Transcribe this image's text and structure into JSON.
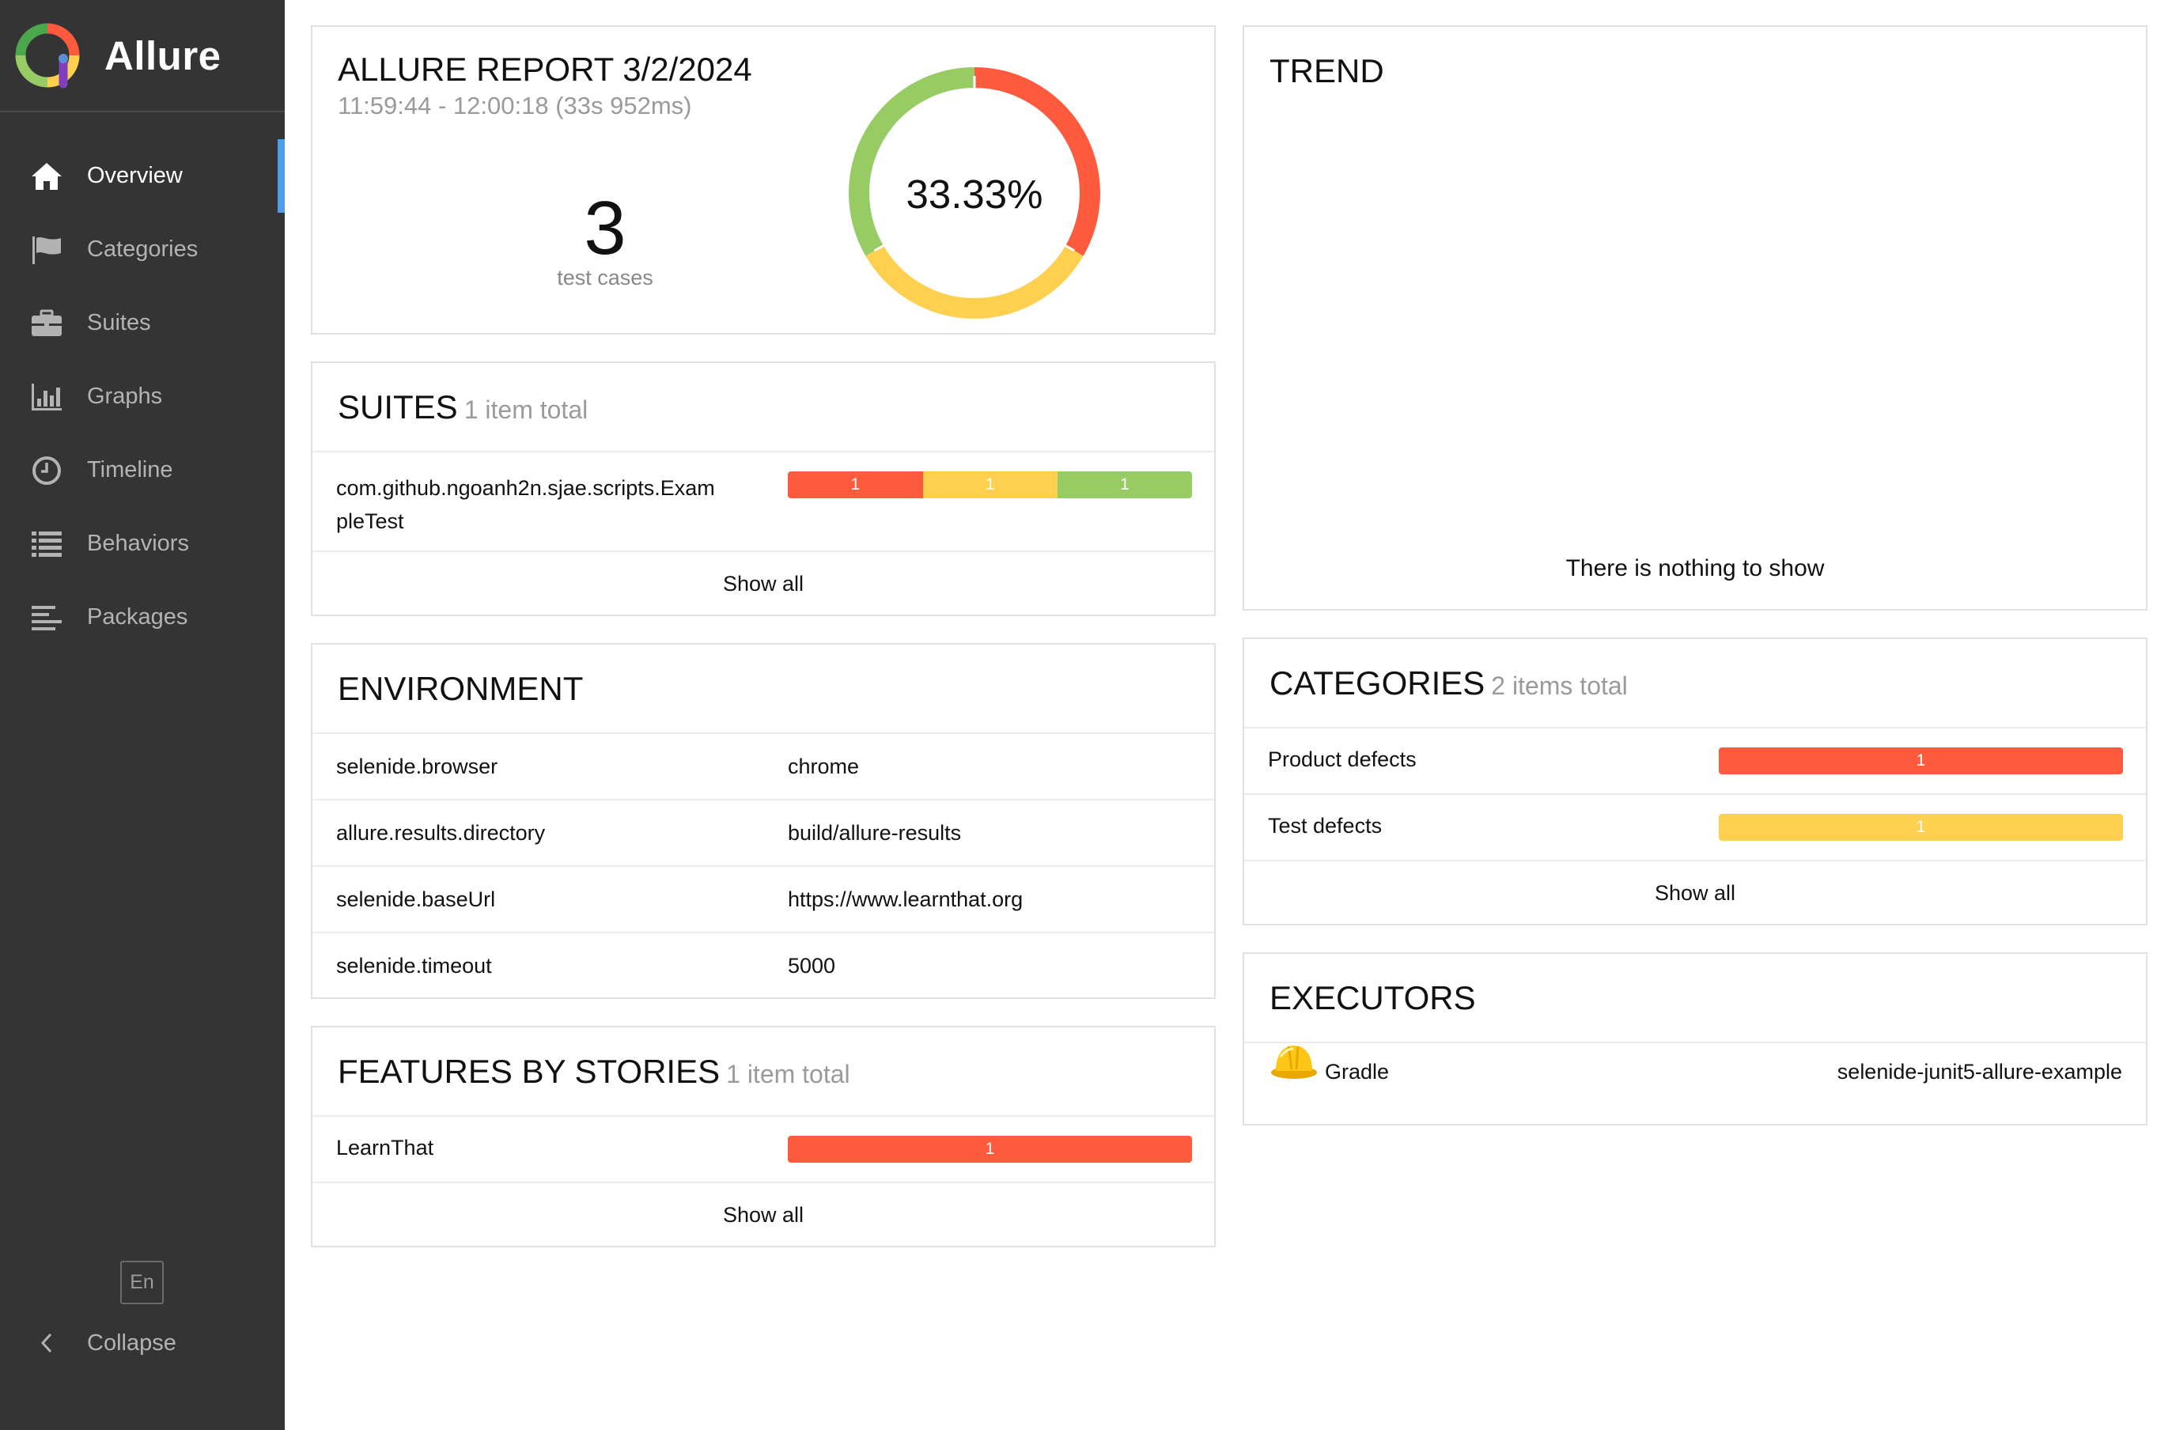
{
  "app": {
    "name": "Allure"
  },
  "sidebar": {
    "items": [
      {
        "label": "Overview",
        "icon": "home-icon",
        "active": true
      },
      {
        "label": "Categories",
        "icon": "flag-icon"
      },
      {
        "label": "Suites",
        "icon": "briefcase-icon"
      },
      {
        "label": "Graphs",
        "icon": "bar-chart-icon"
      },
      {
        "label": "Timeline",
        "icon": "clock-icon"
      },
      {
        "label": "Behaviors",
        "icon": "list-icon"
      },
      {
        "label": "Packages",
        "icon": "align-left-icon"
      }
    ],
    "language": "En",
    "collapse_label": "Collapse"
  },
  "summary": {
    "title": "ALLURE REPORT 3/2/2024",
    "time_range": "11:59:44 - 12:00:18 (33s 952ms)",
    "test_count": "3",
    "test_count_label": "test cases",
    "success_rate": "33.33%",
    "donut": [
      {
        "status": "failed",
        "value": 1,
        "color": "#fd5a3e"
      },
      {
        "status": "broken",
        "value": 1,
        "color": "#ffd050"
      },
      {
        "status": "passed",
        "value": 1,
        "color": "#97cc64"
      }
    ]
  },
  "suites": {
    "title": "SUITES",
    "total": "1 item total",
    "rows": [
      {
        "name_line1": "com.github.ngoanh2n.sjae.scripts.Exam",
        "name_line2": "pleTest",
        "failed": "1",
        "broken": "1",
        "passed": "1"
      }
    ],
    "show_all": "Show all"
  },
  "environment": {
    "title": "ENVIRONMENT",
    "rows": [
      {
        "key": "selenide.browser",
        "value": "chrome"
      },
      {
        "key": "allure.results.directory",
        "value": "build/allure-results"
      },
      {
        "key": "selenide.baseUrl",
        "value": "https://www.learnthat.org"
      },
      {
        "key": "selenide.timeout",
        "value": "5000"
      }
    ]
  },
  "features": {
    "title": "FEATURES BY STORIES",
    "total": "1 item total",
    "rows": [
      {
        "name": "LearnThat",
        "failed": "1"
      }
    ],
    "show_all": "Show all"
  },
  "trend": {
    "title": "TREND",
    "empty_message": "There is nothing to show"
  },
  "categories": {
    "title": "CATEGORIES",
    "total": "2 items total",
    "rows": [
      {
        "name": "Product defects",
        "count": "1",
        "color": "#fd5a3e"
      },
      {
        "name": "Test defects",
        "count": "1",
        "color": "#ffd050"
      }
    ],
    "show_all": "Show all"
  },
  "executors": {
    "title": "EXECUTORS",
    "rows": [
      {
        "name": "Gradle",
        "build": "selenide-junit5-allure-example",
        "icon": "hard-hat-icon"
      }
    ]
  }
}
